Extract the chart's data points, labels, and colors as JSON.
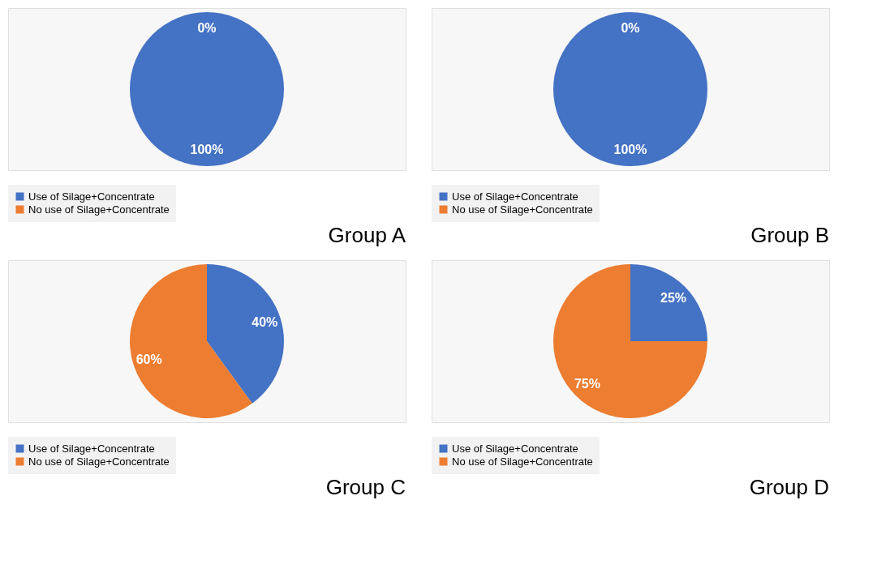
{
  "chart_data": [
    {
      "type": "pie",
      "title": "Group A",
      "categories": [
        "Use of Silage+Concentrate",
        "No use of Silage+Concentrate"
      ],
      "values": [
        100,
        0
      ],
      "colors": [
        "#4472c4",
        "#ed7d31"
      ],
      "value_labels": [
        "100%",
        "0%"
      ],
      "legend": "bottom"
    },
    {
      "type": "pie",
      "title": "Group B",
      "categories": [
        "Use of Silage+Concentrate",
        "No use of Silage+Concentrate"
      ],
      "values": [
        100,
        0
      ],
      "colors": [
        "#4472c4",
        "#ed7d31"
      ],
      "value_labels": [
        "100%",
        "0%"
      ],
      "legend": "bottom"
    },
    {
      "type": "pie",
      "title": "Group C",
      "categories": [
        "Use of Silage+Concentrate",
        "No use of Silage+Concentrate"
      ],
      "values": [
        40,
        60
      ],
      "colors": [
        "#4472c4",
        "#ed7d31"
      ],
      "value_labels": [
        "40%",
        "60%"
      ],
      "legend": "bottom"
    },
    {
      "type": "pie",
      "title": "Group D",
      "categories": [
        "Use of Silage+Concentrate",
        "No use of Silage+Concentrate"
      ],
      "values": [
        25,
        75
      ],
      "colors": [
        "#4472c4",
        "#ed7d31"
      ],
      "value_labels": [
        "25%",
        "75%"
      ],
      "legend": "bottom"
    }
  ]
}
